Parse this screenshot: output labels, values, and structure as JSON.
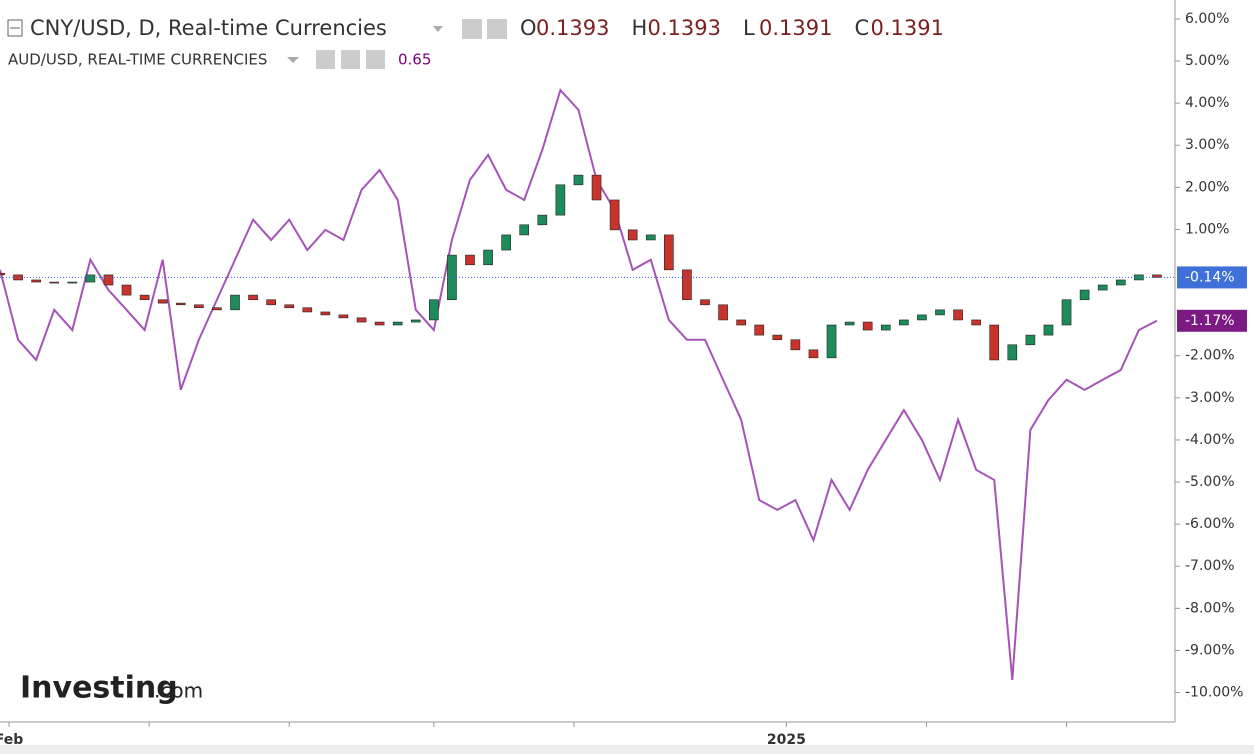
{
  "chart_data": {
    "type": "candlestick",
    "title": "CNY/USD, D, Real-time Currencies",
    "ohlc": [
      {
        "label": "O",
        "value": "0.1393"
      },
      {
        "label": "H",
        "value": "0.1393"
      },
      {
        "label": "L",
        "value": "0.1391"
      },
      {
        "label": "C",
        "value": "0.1391"
      }
    ],
    "watermark": {
      "brand": "Investing",
      "suffix": ".com"
    },
    "xlim": [
      0,
      260
    ],
    "ylim": [
      -10.7,
      6.45
    ],
    "xticks": [
      {
        "value": 2,
        "label": "Feb"
      },
      {
        "value": 33,
        "label": null
      },
      {
        "value": 64,
        "label": null
      },
      {
        "value": 96,
        "label": null
      },
      {
        "value": 127,
        "label": null
      },
      {
        "value": 174,
        "label": "2025"
      },
      {
        "value": 205,
        "label": null
      },
      {
        "value": 236,
        "label": null
      }
    ],
    "yticks": [
      {
        "value": 6,
        "label": "6.00%"
      },
      {
        "value": 5,
        "label": "5.00%"
      },
      {
        "value": 4,
        "label": "4.00%"
      },
      {
        "value": 3,
        "label": "3.00%"
      },
      {
        "value": 2,
        "label": "2.00%"
      },
      {
        "value": 1,
        "label": "1.00%"
      },
      {
        "value": -2,
        "label": "-2.00%"
      },
      {
        "value": -3,
        "label": "-3.00%"
      },
      {
        "value": -4,
        "label": "-4.00%"
      },
      {
        "value": -5,
        "label": "-5.00%"
      },
      {
        "value": -6,
        "label": "-6.00%"
      },
      {
        "value": -7,
        "label": "-7.00%"
      },
      {
        "value": -8,
        "label": "-8.00%"
      },
      {
        "value": -9,
        "label": "-9.00%"
      },
      {
        "value": -10,
        "label": "-10.00%"
      }
    ],
    "x": [
      0,
      4,
      8,
      12,
      16,
      20,
      24,
      28,
      32,
      36,
      40,
      44,
      48,
      52,
      56,
      60,
      64,
      68,
      72,
      76,
      80,
      84,
      88,
      92,
      96,
      100,
      104,
      108,
      112,
      116,
      120,
      124,
      128,
      132,
      136,
      140,
      144,
      148,
      152,
      156,
      160,
      164,
      168,
      172,
      176,
      180,
      184,
      188,
      192,
      196,
      200,
      204,
      208,
      212,
      216,
      220,
      224,
      228,
      232,
      236,
      240,
      244,
      248,
      252,
      256
    ],
    "candles": {
      "name": "CNY/USD",
      "up_color": "#1e8c5a",
      "down_color": "#c8342b",
      "open": [
        -0.04,
        -0.08,
        -0.2,
        -0.25,
        -0.27,
        -0.25,
        -0.08,
        -0.32,
        -0.56,
        -0.67,
        -0.75,
        -0.79,
        -0.86,
        -0.91,
        -0.56,
        -0.67,
        -0.79,
        -0.86,
        -0.96,
        -1.03,
        -1.1,
        -1.2,
        -1.27,
        -1.2,
        -1.15,
        -0.67,
        0.39,
        0.16,
        0.51,
        0.87,
        1.11,
        1.34,
        2.06,
        2.29,
        1.7,
        0.99,
        0.75,
        0.87,
        0.04,
        -0.67,
        -0.79,
        -1.15,
        -1.27,
        -1.51,
        -1.62,
        -1.86,
        -2.05,
        -1.27,
        -1.2,
        -1.39,
        -1.27,
        -1.15,
        -1.03,
        -0.91,
        -1.15,
        -1.27,
        -2.1,
        -1.74,
        -1.51,
        -1.27,
        -0.67,
        -0.44,
        -0.32,
        -0.2,
        -0.08
      ],
      "close": [
        -0.08,
        -0.2,
        -0.25,
        -0.27,
        -0.25,
        -0.08,
        -0.32,
        -0.56,
        -0.67,
        -0.75,
        -0.79,
        -0.86,
        -0.91,
        -0.56,
        -0.67,
        -0.79,
        -0.86,
        -0.96,
        -1.03,
        -1.1,
        -1.2,
        -1.27,
        -1.2,
        -1.15,
        -0.67,
        0.39,
        0.16,
        0.51,
        0.87,
        1.11,
        1.34,
        2.06,
        2.29,
        1.7,
        0.99,
        0.75,
        0.87,
        0.04,
        -0.67,
        -0.79,
        -1.15,
        -1.27,
        -1.51,
        -1.62,
        -1.86,
        -2.05,
        -1.27,
        -1.2,
        -1.39,
        -1.27,
        -1.15,
        -1.03,
        -0.91,
        -1.15,
        -1.27,
        -2.1,
        -1.74,
        -1.51,
        -1.27,
        -0.67,
        -0.44,
        -0.32,
        -0.2,
        -0.08,
        -0.14
      ],
      "last_label": {
        "value": -0.14,
        "label": "-0.14%",
        "color": "#3f6fd8"
      }
    },
    "series": [
      {
        "name": "AUD/USD, REAL-TIME CURRENCIES",
        "readout": "0.65",
        "color": "#a653b8",
        "values": [
          0.04,
          -1.62,
          -2.1,
          -0.91,
          -1.39,
          0.28,
          -0.44,
          -0.91,
          -1.39,
          0.28,
          -2.81,
          -1.62,
          -0.67,
          0.28,
          1.23,
          0.75,
          1.23,
          0.51,
          0.99,
          0.75,
          1.94,
          2.41,
          1.7,
          -0.91,
          -1.39,
          0.75,
          2.18,
          2.77,
          1.94,
          1.7,
          2.89,
          4.31,
          3.84,
          2.18,
          1.46,
          0.04,
          0.28,
          -1.15,
          -1.62,
          -1.62,
          -2.57,
          -3.52,
          -5.43,
          -5.66,
          -5.43,
          -6.38,
          -4.95,
          -5.66,
          -4.71,
          -4.0,
          -3.29,
          -4.0,
          -4.95,
          -3.52,
          -4.71,
          -4.95,
          -9.7,
          -3.76,
          -3.05,
          -2.57,
          -2.81,
          -2.57,
          -2.34,
          -1.39,
          -1.17
        ],
        "last_label": {
          "value": -1.17,
          "label": "-1.17%",
          "color": "#7b1a83"
        }
      }
    ]
  }
}
